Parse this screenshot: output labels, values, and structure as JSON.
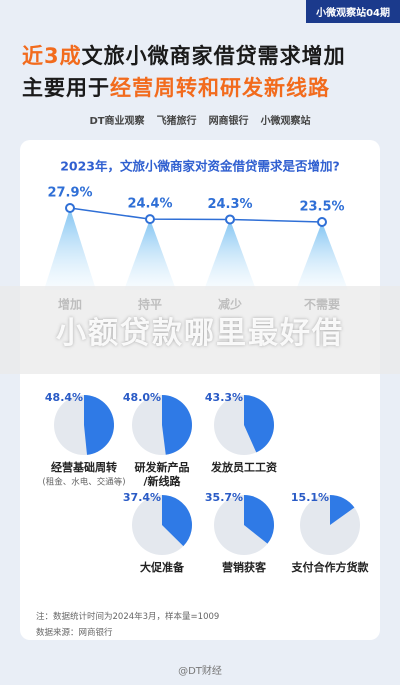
{
  "header": {
    "tag": "小微观察站04期",
    "line1": [
      "近3成",
      "文旅小微商家借贷需求增加"
    ],
    "line2": [
      "主要用于",
      "经营周转和研发新线路"
    ],
    "logos": [
      "DT商业观察",
      "飞猪旅行",
      "网商银行",
      "小微观察站"
    ]
  },
  "overlay": "小额贷款哪里最好借",
  "chart_data": [
    {
      "type": "line",
      "title": "2023年，文旅小微商家对资金借贷需求是否增加?",
      "categories": [
        "增加",
        "持平",
        "减少",
        "不需要"
      ],
      "values": [
        27.9,
        24.4,
        24.3,
        23.5
      ],
      "value_labels": [
        "27.9%",
        "24.4%",
        "24.3%",
        "23.5%"
      ],
      "color": "#2f6fd6"
    },
    {
      "type": "pie",
      "categories": [
        "经营基础周转",
        "研发新产品/新线路",
        "发放员工工资",
        "大促准备",
        "营销获客",
        "支付合作方货款"
      ],
      "values": [
        48.4,
        48.0,
        43.3,
        37.4,
        35.7,
        15.1
      ],
      "value_labels": [
        "48.4%",
        "48.0%",
        "43.3%",
        "37.4%",
        "35.7%",
        "15.1%"
      ],
      "subtitle": "(租金、水电、交通等)",
      "color": "#2f7ae6"
    }
  ],
  "notes": [
    "注：数据统计时间为2024年3月，样本量=1009",
    "数据来源：网商银行"
  ],
  "footer": "@DT财经"
}
